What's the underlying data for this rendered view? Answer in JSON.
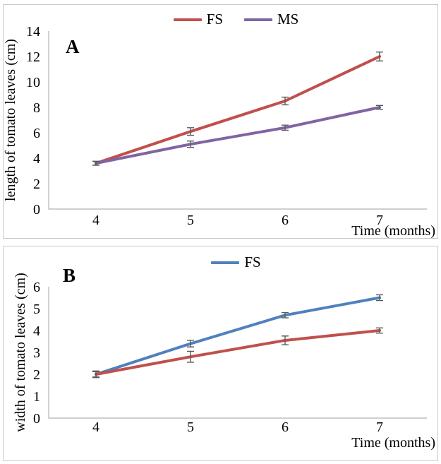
{
  "colors": {
    "axis_line": "#bfbfbf",
    "error_bar": "#595959",
    "text": "#000000",
    "fs_red": "#C0504D",
    "ms_purple": "#8064A2",
    "fs_blue": "#4F81BD"
  },
  "chart_data": [
    {
      "type": "line",
      "panel_label": "A",
      "xlabel": "Time (months)",
      "ylabel": "length of tomato leaves (cm)",
      "x": [
        4,
        5,
        6,
        7
      ],
      "ylim": [
        0,
        14
      ],
      "ytick_step": 2,
      "grid": false,
      "legend_position": "top-center",
      "legend": [
        "FS",
        "MS"
      ],
      "series": [
        {
          "name": "FS",
          "color": "#C0504D",
          "values": [
            3.6,
            6.1,
            8.5,
            12.0
          ],
          "errors": [
            0.15,
            0.3,
            0.3,
            0.35
          ]
        },
        {
          "name": "MS",
          "color": "#8064A2",
          "values": [
            3.6,
            5.1,
            6.4,
            8.0
          ],
          "errors": [
            0.15,
            0.25,
            0.2,
            0.15
          ]
        }
      ]
    },
    {
      "type": "line",
      "panel_label": "B",
      "xlabel": "Time (months)",
      "ylabel": "width of tomato leaves (cm)",
      "x": [
        4,
        5,
        6,
        7
      ],
      "ylim": [
        0,
        6
      ],
      "ytick_step": 1,
      "grid": false,
      "legend_position": "top-center",
      "legend": [
        "FS"
      ],
      "series": [
        {
          "name": "FS",
          "color": "#4F81BD",
          "values": [
            2.0,
            3.4,
            4.7,
            5.5
          ],
          "errors": [
            0.15,
            0.15,
            0.12,
            0.13
          ]
        },
        {
          "name": "",
          "color": "#C0504D",
          "values": [
            2.0,
            2.8,
            3.55,
            4.0
          ],
          "errors": [
            0.12,
            0.25,
            0.2,
            0.12
          ]
        }
      ]
    }
  ]
}
